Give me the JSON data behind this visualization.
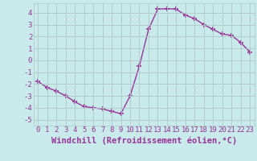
{
  "x": [
    0,
    1,
    2,
    3,
    4,
    5,
    6,
    7,
    8,
    9,
    10,
    11,
    12,
    13,
    14,
    15,
    16,
    17,
    18,
    19,
    20,
    21,
    22,
    23
  ],
  "y": [
    -1.8,
    -2.3,
    -2.6,
    -3.0,
    -3.5,
    -3.9,
    -4.0,
    -4.1,
    -4.3,
    -4.5,
    -3.0,
    -0.5,
    2.6,
    4.3,
    4.35,
    4.3,
    3.8,
    3.5,
    3.0,
    2.6,
    2.2,
    2.1,
    1.5,
    0.7
  ],
  "line_color": "#993399",
  "marker": "+",
  "marker_size": 4,
  "xlabel": "Windchill (Refroidissement éolien,°C)",
  "xlim_min": -0.5,
  "xlim_max": 23.5,
  "ylim_min": -5.5,
  "ylim_max": 4.8,
  "yticks": [
    -5,
    -4,
    -3,
    -2,
    -1,
    0,
    1,
    2,
    3,
    4
  ],
  "xticks": [
    0,
    1,
    2,
    3,
    4,
    5,
    6,
    7,
    8,
    9,
    10,
    11,
    12,
    13,
    14,
    15,
    16,
    17,
    18,
    19,
    20,
    21,
    22,
    23
  ],
  "xtick_labels": [
    "0",
    "1",
    "2",
    "3",
    "4",
    "5",
    "6",
    "7",
    "8",
    "9",
    "10",
    "11",
    "12",
    "13",
    "14",
    "15",
    "16",
    "17",
    "18",
    "19",
    "20",
    "21",
    "22",
    "23"
  ],
  "background_color": "#c8eaea",
  "grid_color": "#b0c8c8",
  "line_width": 1.0,
  "tick_color": "#993399",
  "label_color": "#993399",
  "tick_fontsize": 6.5,
  "xlabel_fontsize": 7.5
}
